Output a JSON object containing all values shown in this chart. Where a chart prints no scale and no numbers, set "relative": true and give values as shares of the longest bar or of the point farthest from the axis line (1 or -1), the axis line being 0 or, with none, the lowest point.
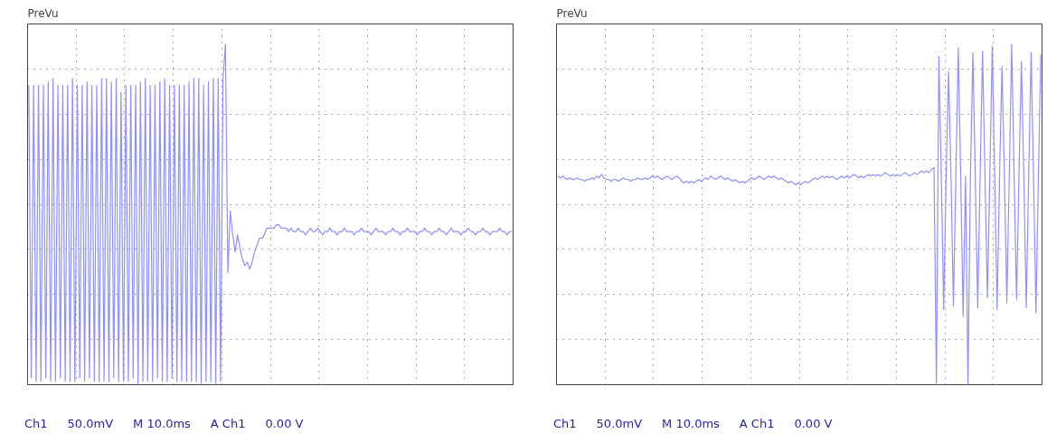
{
  "chart_data": [
    {
      "type": "line",
      "title": "PreVu",
      "relative": true,
      "grid": true,
      "marker": "none",
      "line_style": "solid",
      "annotations": [
        "Ch1",
        "50.0mV",
        "M 10.0ms",
        "A Ch1",
        "0.00 V"
      ],
      "categories": [
        null,
        null,
        null,
        null,
        null,
        null,
        null,
        null,
        null,
        null,
        null,
        null,
        null,
        null,
        null,
        null,
        null,
        null,
        null,
        null,
        null,
        null,
        null,
        null,
        null,
        null,
        null,
        null,
        null,
        null,
        null,
        null,
        null,
        null,
        null,
        null,
        null,
        null,
        null,
        null,
        null,
        null,
        null,
        null,
        null,
        null,
        null,
        null,
        null,
        null,
        null,
        null,
        null,
        null,
        null,
        null,
        null,
        null,
        null,
        null,
        null,
        null,
        null,
        null,
        null,
        null,
        null,
        null,
        null,
        null,
        null,
        null,
        null,
        null,
        null,
        null,
        null,
        null,
        null,
        null,
        null,
        null,
        null,
        null,
        null,
        null,
        null,
        null,
        null,
        null,
        null,
        null,
        null,
        null,
        null,
        null,
        null,
        null,
        null,
        null,
        null,
        null,
        null,
        null,
        null,
        null,
        null,
        null,
        null,
        null,
        null,
        null,
        null,
        null,
        null,
        null,
        null,
        null,
        null,
        null,
        null,
        null,
        null,
        null,
        null,
        null,
        null,
        null,
        null,
        null,
        null,
        null,
        null,
        null,
        null,
        null,
        null,
        null,
        null,
        null,
        null,
        null,
        null,
        null,
        null,
        null,
        null,
        null,
        null,
        null,
        null,
        null,
        null,
        null,
        null,
        null,
        null,
        null,
        null,
        null,
        null,
        null,
        null,
        null,
        null,
        null,
        null,
        null,
        null,
        null,
        null,
        null,
        null,
        null,
        null,
        null,
        null,
        null,
        null,
        null,
        null,
        null,
        null,
        null,
        null,
        null,
        null,
        null,
        null,
        null,
        null,
        null,
        null,
        null,
        null,
        null,
        null,
        null,
        null,
        null
      ],
      "series": [
        {
          "color": "#8f8fff",
          "values": [
            0.88,
            0.02,
            0.88,
            0.01,
            0.88,
            0.01,
            0.88,
            0.02,
            0.89,
            0.01,
            0.9,
            0.01,
            0.88,
            0.02,
            0.88,
            0.01,
            0.88,
            0.01,
            0.9,
            0.01,
            0.88,
            0.02,
            0.88,
            0.01,
            0.89,
            0.02,
            0.88,
            0.01,
            0.88,
            0.01,
            0.9,
            0.01,
            0.9,
            0.01,
            0.89,
            0.02,
            0.9,
            0.01,
            0.86,
            0.01,
            0.88,
            0.01,
            0.88,
            0.02,
            0.88,
            0,
            0.89,
            0.01,
            0.9,
            0.01,
            0.88,
            0.01,
            0.88,
            0.02,
            0.89,
            0.01,
            0.9,
            0.01,
            0.88,
            0.02,
            0.88,
            0.01,
            0.88,
            0.01,
            0.88,
            0.01,
            0.89,
            0.01,
            0.9,
            0.01,
            0.9,
            0,
            0.88,
            0.01,
            0.89,
            0.01,
            0.9,
            0,
            0.9,
            0.01,
            0.9,
            1,
            0.33,
            0.51,
            0.44,
            0.39,
            0.44,
            0.4,
            0.37,
            0.35,
            0.36,
            0.34,
            0.36,
            0.39,
            0.41,
            0.43,
            0.43,
            0.44,
            0.46,
            0.46,
            0.46,
            0.46,
            0.47,
            0.47,
            0.46,
            0.46,
            0.46,
            0.45,
            0.46,
            0.45,
            0.45,
            0.46,
            0.45,
            0.45,
            0.44,
            0.45,
            0.46,
            0.45,
            0.45,
            0.46,
            0.45,
            0.44,
            0.45,
            0.45,
            0.46,
            0.45,
            0.45,
            0.44,
            0.45,
            0.45,
            0.46,
            0.45,
            0.45,
            0.45,
            0.44,
            0.45,
            0.45,
            0.46,
            0.45,
            0.45,
            0.45,
            0.44,
            0.45,
            0.46,
            0.45,
            0.45,
            0.45,
            0.44,
            0.45,
            0.45,
            0.46,
            0.45,
            0.45,
            0.44,
            0.45,
            0.45,
            0.46,
            0.45,
            0.45,
            0.45,
            0.44,
            0.45,
            0.45,
            0.46,
            0.45,
            0.45,
            0.44,
            0.45,
            0.45,
            0.46,
            0.45,
            0.45,
            0.44,
            0.45,
            0.46,
            0.45,
            0.45,
            0.45,
            0.44,
            0.45,
            0.45,
            0.46,
            0.45,
            0.45,
            0.44,
            0.45,
            0.45,
            0.46,
            0.45,
            0.45,
            0.44,
            0.45,
            0.45,
            0.45,
            0.46,
            0.45,
            0.45,
            0.44,
            0.45,
            0.45
          ]
        }
      ]
    },
    {
      "type": "line",
      "title": "PreVu",
      "relative": true,
      "grid": true,
      "marker": "none",
      "line_style": "solid",
      "annotations": [
        "Ch1",
        "50.0mV",
        "M 10.0ms",
        "A Ch1",
        "0.00 V"
      ],
      "categories": [
        null,
        null,
        null,
        null,
        null,
        null,
        null,
        null,
        null,
        null,
        null,
        null,
        null,
        null,
        null,
        null,
        null,
        null,
        null,
        null,
        null,
        null,
        null,
        null,
        null,
        null,
        null,
        null,
        null,
        null,
        null,
        null,
        null,
        null,
        null,
        null,
        null,
        null,
        null,
        null,
        null,
        null,
        null,
        null,
        null,
        null,
        null,
        null,
        null,
        null,
        null,
        null,
        null,
        null,
        null,
        null,
        null,
        null,
        null,
        null,
        null,
        null,
        null,
        null,
        null,
        null,
        null,
        null,
        null,
        null,
        null,
        null,
        null,
        null,
        null,
        null,
        null,
        null,
        null,
        null,
        null,
        null,
        null,
        null,
        null,
        null,
        null,
        null,
        null,
        null,
        null,
        null,
        null,
        null,
        null,
        null,
        null,
        null,
        null,
        null,
        null,
        null,
        null,
        null,
        null,
        null,
        null,
        null,
        null,
        null,
        null,
        null,
        null,
        null,
        null,
        null,
        null,
        null,
        null,
        null,
        null,
        null,
        null,
        null,
        null,
        null,
        null,
        null,
        null,
        null,
        null,
        null,
        null,
        null,
        null,
        null,
        null,
        null,
        null,
        null,
        null,
        null,
        null,
        null,
        null,
        null,
        null,
        null,
        null,
        null,
        null,
        null,
        null,
        null,
        null,
        null,
        null,
        null,
        null,
        null,
        null,
        null,
        null,
        null,
        null,
        null,
        null,
        null,
        null,
        null,
        null,
        null,
        null,
        null,
        null,
        null,
        null,
        null,
        null,
        null,
        null,
        null,
        null,
        null,
        null,
        null,
        null,
        null,
        null,
        null,
        null,
        null,
        null,
        null,
        null,
        null,
        null,
        null,
        null,
        null
      ],
      "series": [
        {
          "color": "#8f8fff",
          "values": [
            0.613,
            0.608,
            0.613,
            0.608,
            0.603,
            0.608,
            0.603,
            0.603,
            0.608,
            0.603,
            0.603,
            0.598,
            0.603,
            0.603,
            0.608,
            0.603,
            0.613,
            0.608,
            0.618,
            0.608,
            0.603,
            0.603,
            0.598,
            0.603,
            0.603,
            0.598,
            0.603,
            0.608,
            0.603,
            0.603,
            0.598,
            0.603,
            0.603,
            0.608,
            0.603,
            0.603,
            0.608,
            0.603,
            0.608,
            0.613,
            0.608,
            0.613,
            0.608,
            0.603,
            0.608,
            0.613,
            0.608,
            0.603,
            0.608,
            0.613,
            0.608,
            0.598,
            0.593,
            0.598,
            0.593,
            0.598,
            0.593,
            0.598,
            0.603,
            0.598,
            0.603,
            0.608,
            0.603,
            0.613,
            0.608,
            0.603,
            0.608,
            0.613,
            0.608,
            0.603,
            0.608,
            0.603,
            0.598,
            0.603,
            0.598,
            0.593,
            0.598,
            0.593,
            0.598,
            0.603,
            0.608,
            0.603,
            0.608,
            0.613,
            0.608,
            0.603,
            0.608,
            0.613,
            0.608,
            0.613,
            0.608,
            0.603,
            0.608,
            0.603,
            0.598,
            0.593,
            0.598,
            0.593,
            0.588,
            0.593,
            0.588,
            0.593,
            0.598,
            0.593,
            0.598,
            0.603,
            0.608,
            0.603,
            0.608,
            0.613,
            0.608,
            0.613,
            0.608,
            0.613,
            0.608,
            0.603,
            0.608,
            0.613,
            0.608,
            0.613,
            0.608,
            0.613,
            0.618,
            0.613,
            0.608,
            0.613,
            0.608,
            0.613,
            0.618,
            0.613,
            0.618,
            0.613,
            0.618,
            0.613,
            0.618,
            0.623,
            0.618,
            0.613,
            0.618,
            0.613,
            0.618,
            0.613,
            0.618,
            0.623,
            0.618,
            0.613,
            0.618,
            0.623,
            0.618,
            0.623,
            0.628,
            0.623,
            0.628,
            0.623,
            0.633,
            0.638,
            0,
            0.965,
            0.613,
            0.221,
            0.613,
            0.92,
            0.613,
            0.231,
            0.613,
            0.99,
            0.613,
            0.201,
            0.613,
            0,
            0.613,
            0.975,
            0.613,
            0.226,
            0.613,
            0.98,
            0.613,
            0.256,
            0.613,
            0.995,
            0.613,
            0.221,
            0.613,
            0.935,
            0.613,
            0.241,
            0.613,
            1,
            0.613,
            0.251,
            0.613,
            0.95,
            0.613,
            0.226,
            0.613,
            0.975,
            0.613,
            0.211,
            0.613,
            0.97
          ]
        }
      ]
    }
  ]
}
